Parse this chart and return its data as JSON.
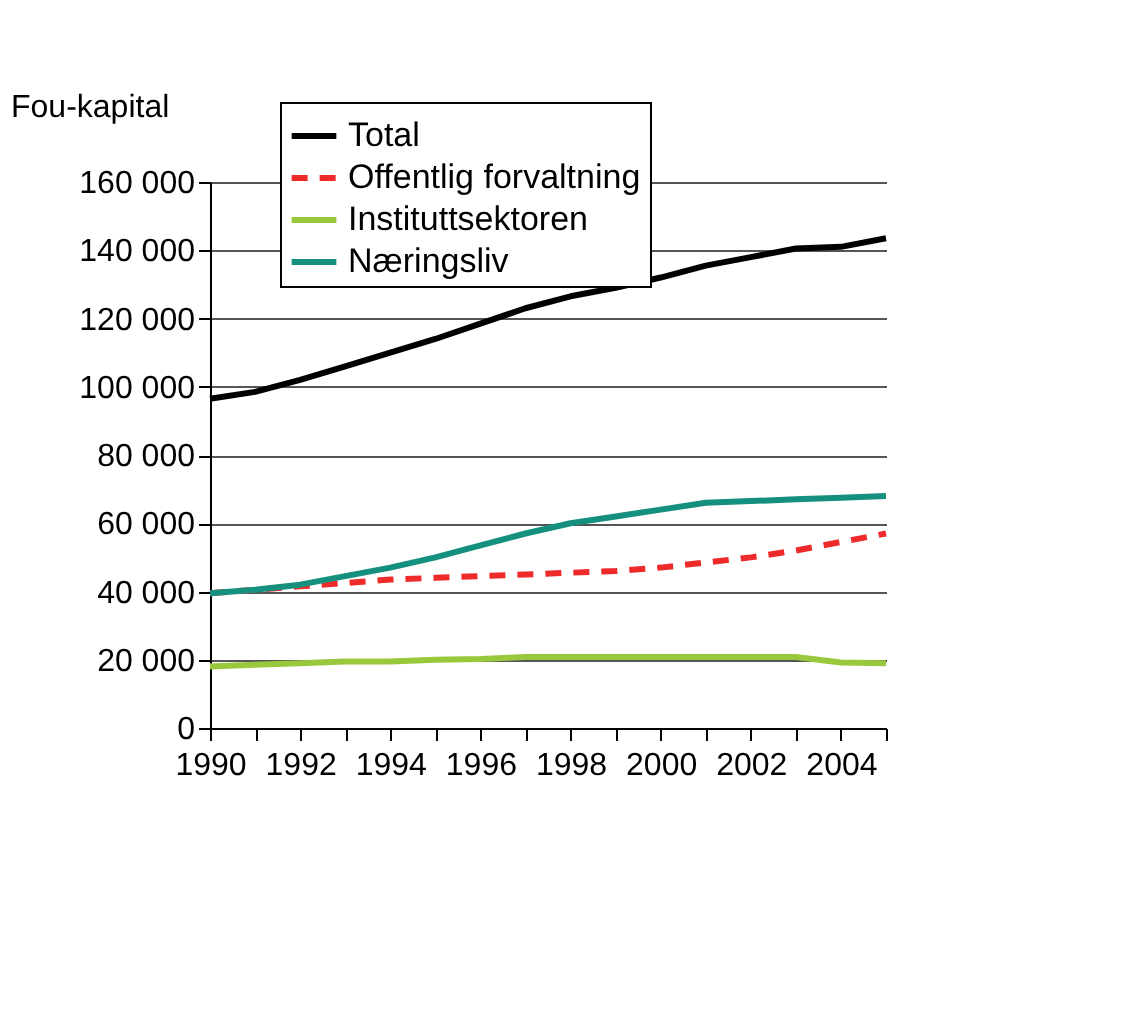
{
  "chart_data": {
    "type": "line",
    "ylabel": "Fou-kapital",
    "x": [
      1990,
      1991,
      1992,
      1993,
      1994,
      1995,
      1996,
      1997,
      1998,
      1999,
      2000,
      2001,
      2002,
      2003,
      2004,
      2005
    ],
    "series": [
      {
        "name": "Total",
        "color": "#000000",
        "line_style": "solid",
        "values": [
          96500,
          98500,
          102000,
          106000,
          110000,
          114000,
          118500,
          123000,
          126500,
          129000,
          132000,
          135500,
          138000,
          140500,
          141000,
          143500
        ]
      },
      {
        "name": "Offentlig forvaltning",
        "color": "#ee2a2a",
        "line_style": "dashed",
        "values": [
          39500,
          40500,
          41500,
          42500,
          43500,
          44000,
          44500,
          45000,
          45500,
          46000,
          47000,
          48500,
          50000,
          52000,
          54500,
          57000
        ]
      },
      {
        "name": "Instituttsektoren",
        "color": "#99c83c",
        "line_style": "solid",
        "values": [
          18000,
          18500,
          19000,
          19500,
          19500,
          20000,
          20200,
          20800,
          20800,
          20800,
          20800,
          20800,
          20800,
          20800,
          19200,
          19000
        ]
      },
      {
        "name": "Næringsliv",
        "color": "#16907e",
        "line_style": "solid",
        "values": [
          39500,
          40500,
          42000,
          44500,
          47000,
          50000,
          53500,
          57000,
          60000,
          62000,
          64000,
          66000,
          66500,
          67000,
          67500,
          68000
        ]
      }
    ],
    "xlim": [
      1990,
      2005
    ],
    "xticks": [
      1990,
      {
        "value": 1991,
        "label": null
      },
      1992,
      {
        "value": 1993,
        "label": null
      },
      1994,
      {
        "value": 1995,
        "label": null
      },
      1996,
      {
        "value": 1997,
        "label": null
      },
      1998,
      {
        "value": 1999,
        "label": null
      },
      2000,
      {
        "value": 2001,
        "label": null
      },
      2002,
      {
        "value": 2003,
        "label": null
      },
      2004,
      {
        "value": 2005,
        "label": null
      }
    ],
    "ylim": [
      0,
      160000
    ],
    "yticks": [
      0,
      20000,
      40000,
      60000,
      80000,
      100000,
      120000,
      140000,
      160000
    ],
    "grid": "y",
    "legend": "top left",
    "marker": "none"
  }
}
